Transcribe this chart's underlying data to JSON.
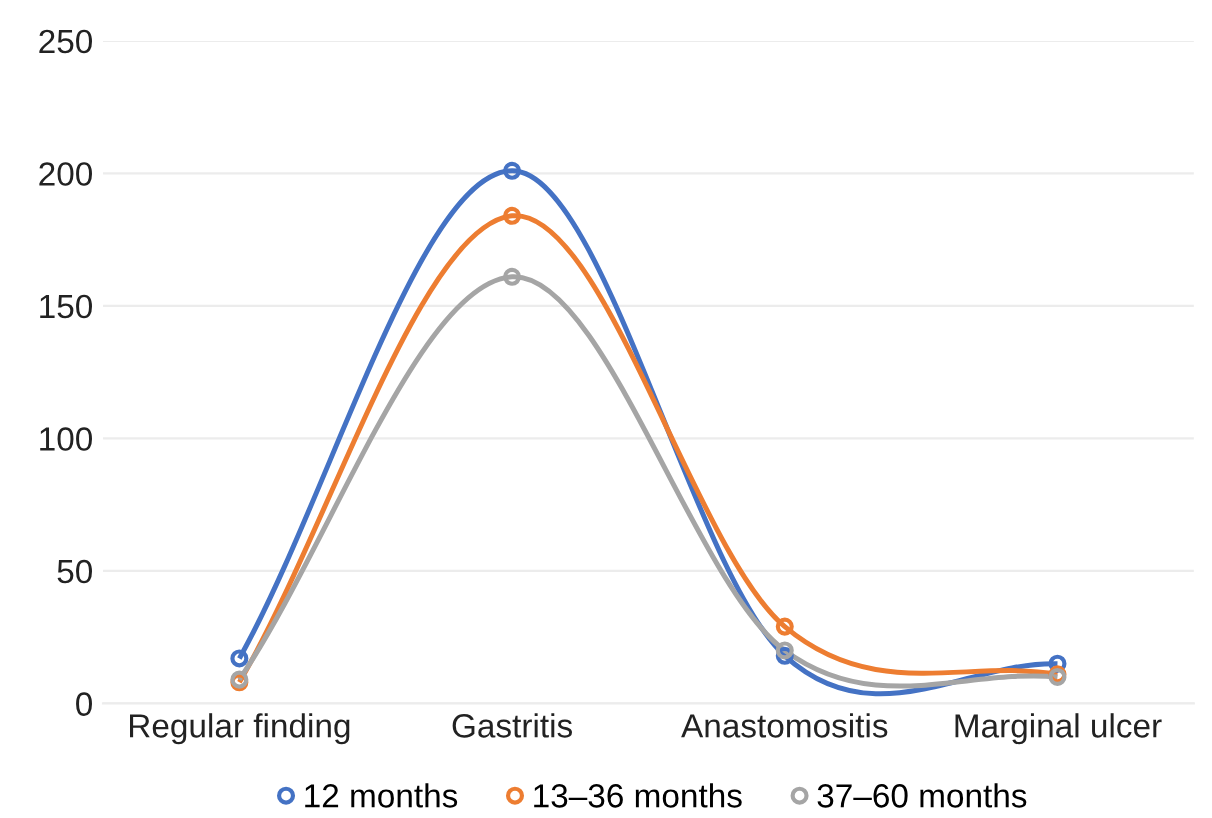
{
  "chart_data": {
    "type": "line",
    "categories": [
      "Regular finding",
      "Gastritis",
      "Anastomositis",
      "Marginal ulcer"
    ],
    "series": [
      {
        "name": "12 months",
        "color": "#4472c4",
        "values": [
          17,
          201,
          18,
          15
        ]
      },
      {
        "name": "13–36 months",
        "color": "#ed7d31",
        "values": [
          8,
          184,
          29,
          11
        ]
      },
      {
        "name": "37–60 months",
        "color": "#a5a5a5",
        "values": [
          9,
          161,
          20,
          10
        ]
      }
    ],
    "ylim": [
      0,
      250
    ],
    "yticks": [
      0,
      50,
      100,
      150,
      200,
      250
    ],
    "grid": "y",
    "legend": "bottom",
    "marker": "circle",
    "line_style": "solid"
  }
}
